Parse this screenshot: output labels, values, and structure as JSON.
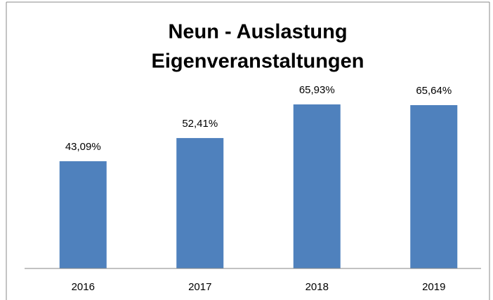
{
  "chart_data": {
    "type": "bar",
    "title": [
      "Neun - Auslastung",
      "Eigenveranstaltungen"
    ],
    "categories": [
      "2016",
      "2017",
      "2018",
      "2019"
    ],
    "values": [
      43.09,
      52.41,
      65.93,
      65.64
    ],
    "value_labels": [
      "43,09%",
      "52,41%",
      "65,93%",
      "65,64%"
    ],
    "color": "#4f81bd",
    "ylim": [
      0,
      70
    ]
  }
}
